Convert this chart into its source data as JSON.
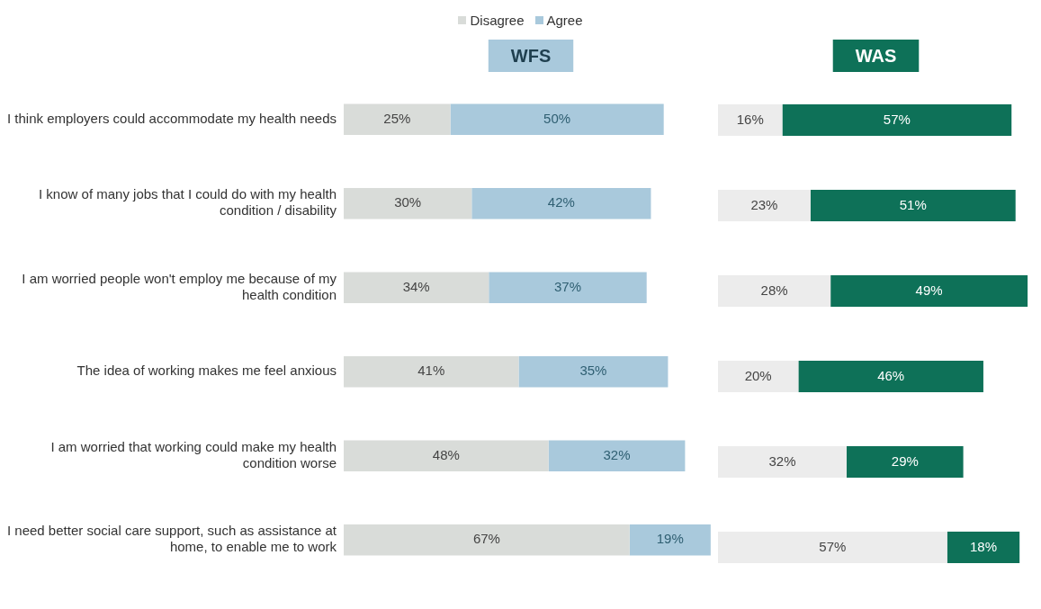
{
  "chart_data": [
    {
      "type": "bar",
      "title": "WFS",
      "orientation": "horizontal",
      "stacked": true,
      "legend": "top",
      "tick_labels": "y",
      "categories": [
        "I think employers could accommodate my health needs",
        "I know of many jobs that I could do with my health condition / disability",
        "I am worried people won't employ me because of my health condition",
        "The idea of working makes me feel anxious",
        "I am worried that working could make my health condition worse",
        "I need better social care support, such as assistance at home, to enable me to work"
      ],
      "series": [
        {
          "name": "Disagree",
          "color": "#d9dcd9",
          "values": [
            25,
            30,
            34,
            41,
            48,
            67
          ],
          "value_labels": [
            "25%",
            "30%",
            "34%",
            "41%",
            "48%",
            "67%"
          ]
        },
        {
          "name": "Agree",
          "color": "#a9c9dc",
          "values": [
            50,
            42,
            37,
            35,
            32,
            19
          ],
          "value_labels": [
            "50%",
            "42%",
            "37%",
            "35%",
            "32%",
            "19%"
          ]
        }
      ]
    },
    {
      "type": "bar",
      "title": "WAS",
      "orientation": "horizontal",
      "stacked": true,
      "tick_labels": false,
      "categories": [
        null,
        null,
        null,
        null,
        null,
        null
      ],
      "series": [
        {
          "color": "#ececec",
          "values": [
            16,
            23,
            28,
            20,
            32,
            57
          ],
          "value_labels": [
            "16%",
            "23%",
            "28%",
            "20%",
            "32%",
            "57%"
          ]
        },
        {
          "color": "#0e7158",
          "values": [
            57,
            51,
            49,
            46,
            29,
            18
          ],
          "value_labels": [
            "57%",
            "51%",
            "49%",
            "46%",
            "29%",
            "18%"
          ]
        }
      ]
    }
  ]
}
